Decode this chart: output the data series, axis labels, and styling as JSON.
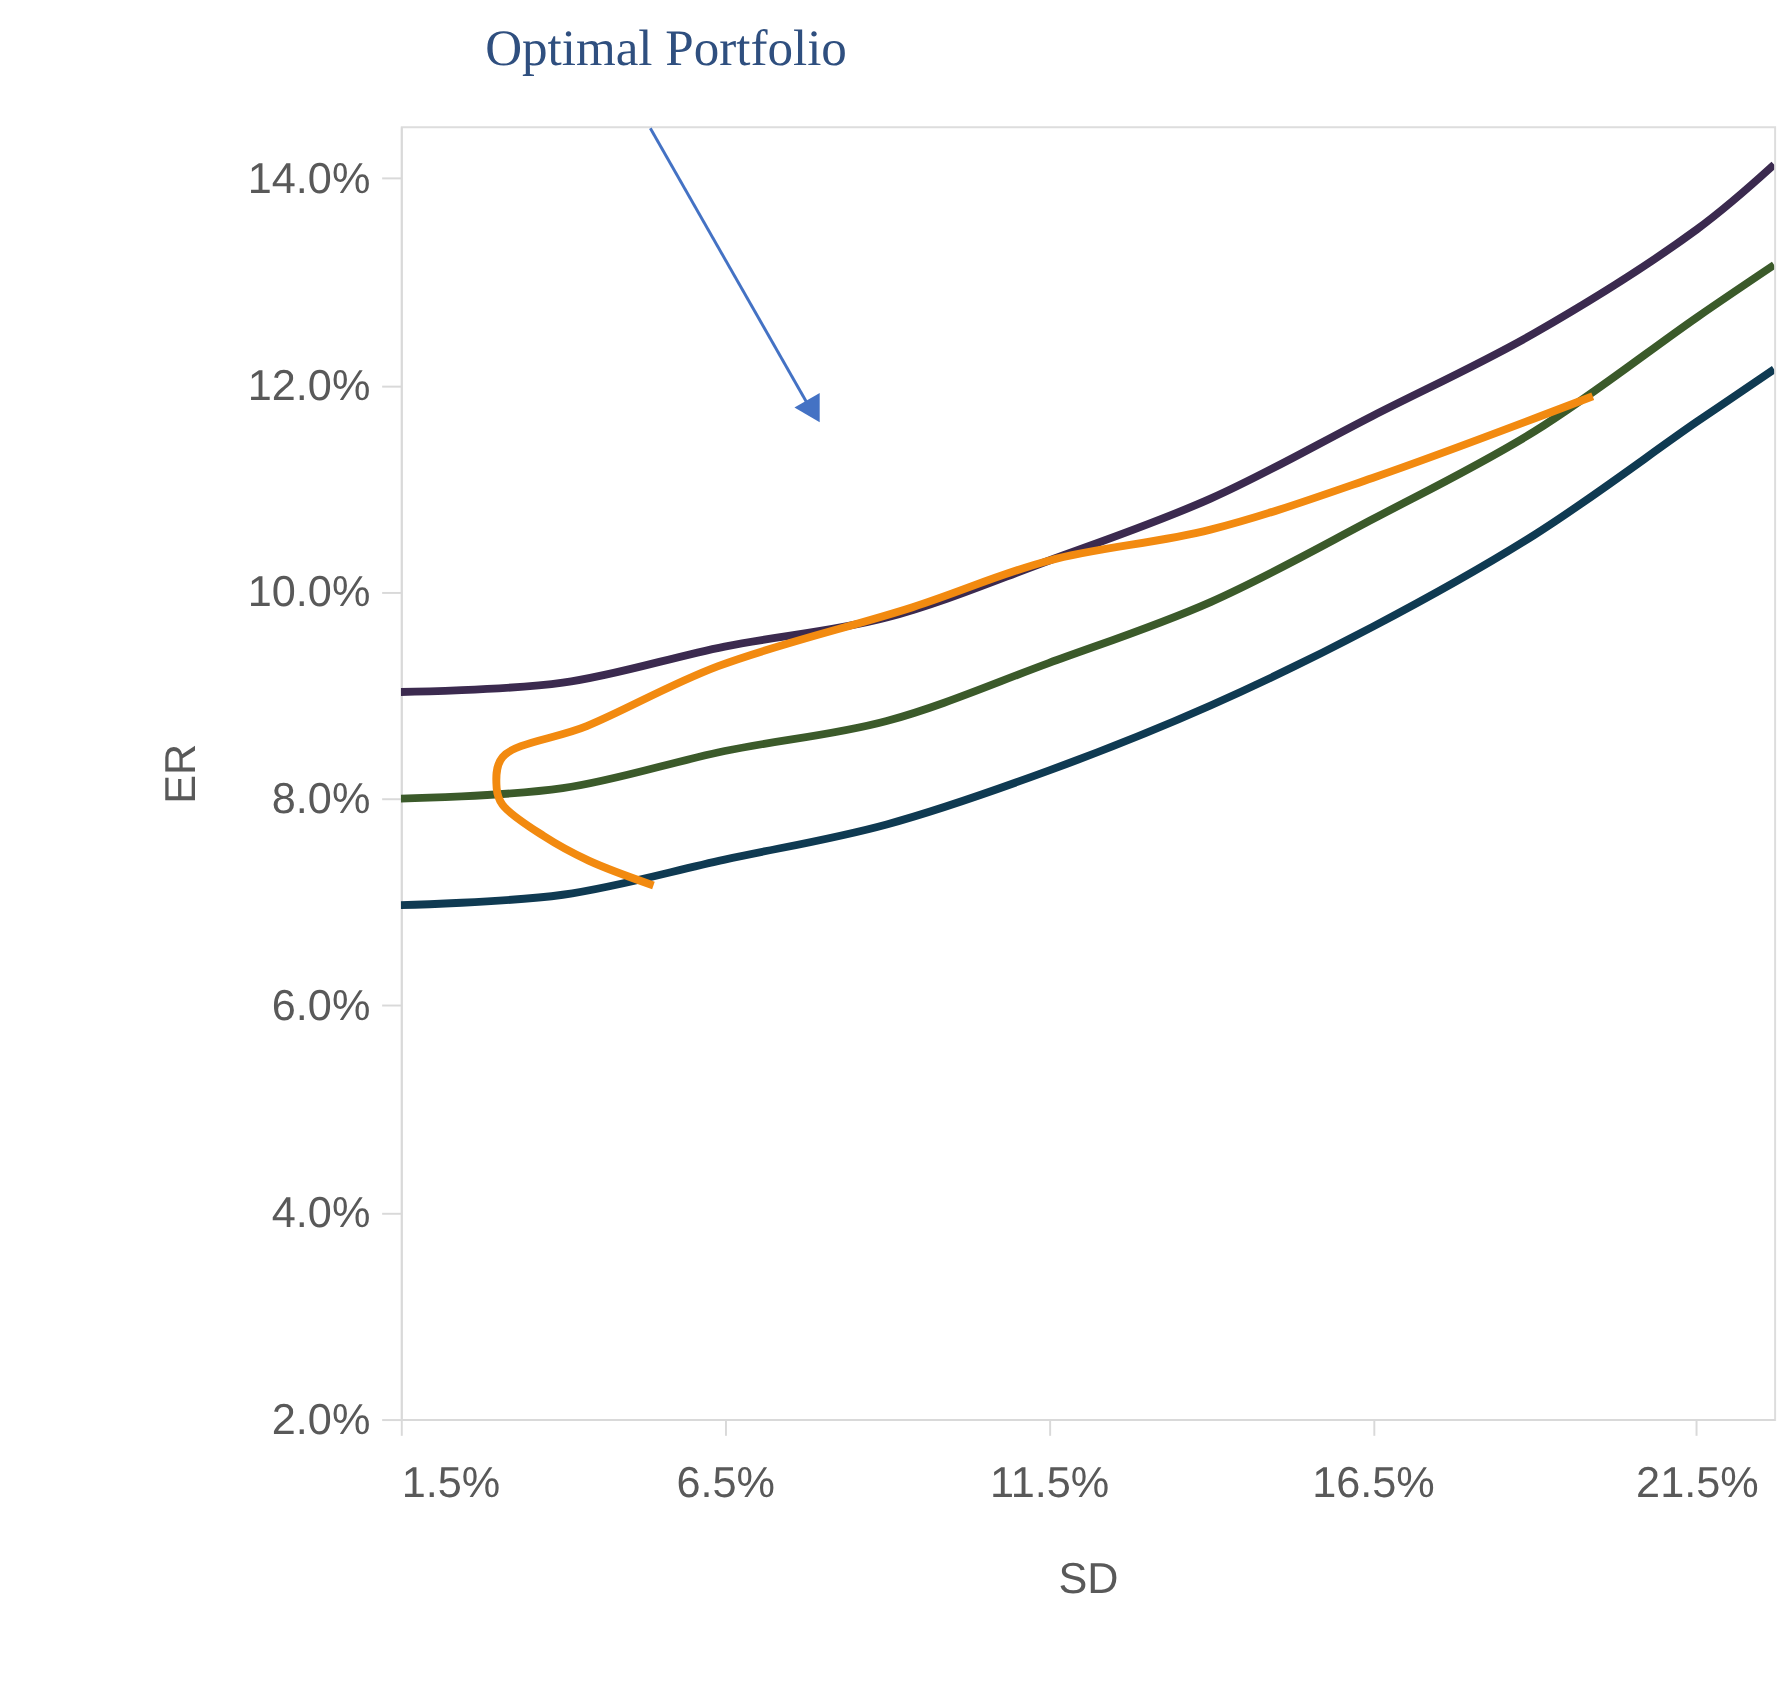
{
  "chart_data": {
    "type": "line",
    "xlabel": "SD",
    "ylabel": "ER",
    "annotations": [
      "Optimal Portfolio"
    ],
    "xlim": [
      1.5,
      22.7
    ],
    "ylim": [
      2.0,
      14.5
    ],
    "xticks": [
      {
        "value": 1.5,
        "label": "1.5%"
      },
      {
        "value": 6.5,
        "label": "6.5%"
      },
      {
        "value": 11.5,
        "label": "11.5%"
      },
      {
        "value": 16.5,
        "label": "16.5%"
      },
      {
        "value": 21.5,
        "label": "21.5%"
      }
    ],
    "yticks": [
      {
        "value": 2,
        "label": "2.0%"
      },
      {
        "value": 4,
        "label": "4.0%"
      },
      {
        "value": 6,
        "label": "6.0%"
      },
      {
        "value": 8,
        "label": "8.0%"
      },
      {
        "value": 10,
        "label": "10.0%"
      },
      {
        "value": 12,
        "label": "12.0%"
      },
      {
        "value": 14,
        "label": "14.0%"
      }
    ],
    "grid": false,
    "legend": false,
    "marker": "none",
    "line_style": "solid",
    "x": [
      1.5,
      4,
      6.5,
      9,
      11.5,
      14,
      16.5,
      19,
      21.5,
      22.7
    ],
    "series": [
      {
        "color": "#3b2a4f",
        "values": [
          9.03,
          9.12,
          9.47,
          9.75,
          10.3,
          10.9,
          11.7,
          12.5,
          13.5,
          14.13
        ]
      },
      {
        "color": "#3b5a2a",
        "values": [
          8.0,
          8.1,
          8.46,
          8.75,
          9.31,
          9.9,
          10.7,
          11.55,
          12.65,
          13.16
        ]
      },
      {
        "color": "#0f3a52",
        "values": [
          6.97,
          7.07,
          7.41,
          7.75,
          8.27,
          8.9,
          9.66,
          10.55,
          11.64,
          12.15
        ]
      },
      {
        "color": "#f28a10",
        "x": [
          5.4,
          4.4,
          3.7,
          3.07,
          2.98,
          3.07,
          4.37,
          6.4,
          9.4,
          11.5,
          14,
          16.5,
          19.9
        ],
        "values": [
          7.16,
          7.4,
          7.64,
          7.94,
          8.1,
          8.4,
          8.7,
          9.28,
          9.85,
          10.3,
          10.6,
          11.1,
          11.89
        ]
      }
    ]
  }
}
